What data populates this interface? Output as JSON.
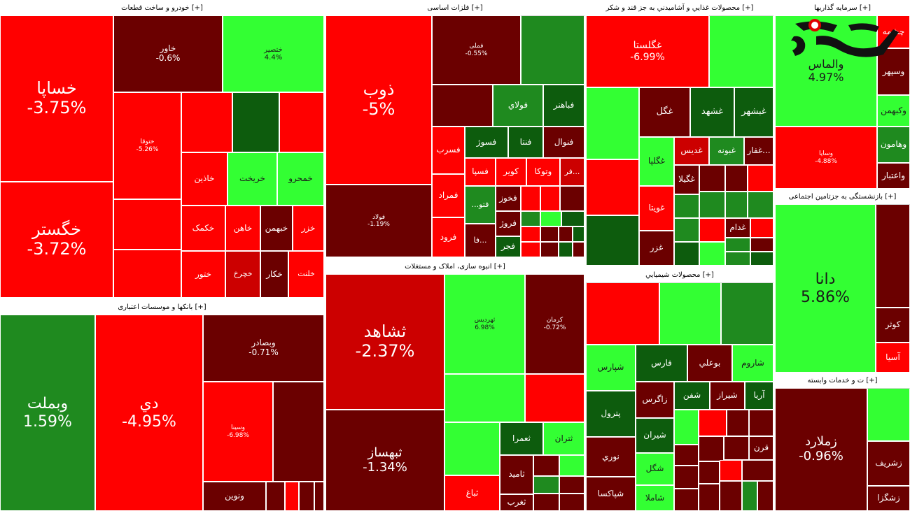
{
  "chart_data": {
    "type": "heatmap",
    "colors": {
      "dark_red": "#6b0000",
      "red": "#ff0000",
      "mid_red": "#cc0000",
      "maroon": "#8b0a0a",
      "bright_green": "#33ff33",
      "green": "#1f8a1f",
      "dark_green": "#0d5c0d"
    },
    "sectors": [
      {
        "name": "[+] خودرو و ساخت قطعات",
        "tiles": [
          {
            "symbol": "خساپا",
            "change": "-3.75%"
          },
          {
            "symbol": "خگستر",
            "change": "-3.72%"
          },
          {
            "symbol": "خاور",
            "change": "-0.6%"
          },
          {
            "symbol": "ختصیر",
            "change": "4.4%"
          },
          {
            "symbol": "ختوقا",
            "change": "-5.26%"
          },
          {
            "symbol": "خاذین",
            "change": ""
          },
          {
            "symbol": "خریخت",
            "change": ""
          },
          {
            "symbol": "خمحرو",
            "change": ""
          },
          {
            "symbol": "خکمک",
            "change": ""
          },
          {
            "symbol": "خاهن",
            "change": ""
          },
          {
            "symbol": "خبهمن",
            "change": ""
          },
          {
            "symbol": "خزر",
            "change": ""
          },
          {
            "symbol": "ختور",
            "change": ""
          },
          {
            "symbol": "خچرخ",
            "change": ""
          },
          {
            "symbol": "خکار",
            "change": ""
          },
          {
            "symbol": "خلنت",
            "change": ""
          }
        ]
      },
      {
        "name": "[+] فلزات اساسی",
        "tiles": [
          {
            "symbol": "ذوب",
            "change": "-5%"
          },
          {
            "symbol": "فولاد",
            "change": "-1.19%"
          },
          {
            "symbol": "فملی",
            "change": "-0.55%"
          },
          {
            "symbol": "فولاي",
            "change": ""
          },
          {
            "symbol": "فباهنر",
            "change": ""
          },
          {
            "symbol": "فسرب",
            "change": ""
          },
          {
            "symbol": "فسوژ",
            "change": ""
          },
          {
            "symbol": "فنتا",
            "change": ""
          },
          {
            "symbol": "فنوال",
            "change": ""
          },
          {
            "symbol": "فمراد",
            "change": ""
          },
          {
            "symbol": "فسپا",
            "change": ""
          },
          {
            "symbol": "کویر",
            "change": ""
          },
          {
            "symbol": "وتوکا",
            "change": ""
          },
          {
            "symbol": "...فر",
            "change": ""
          },
          {
            "symbol": "فخوز",
            "change": ""
          },
          {
            "symbol": "فتو...",
            "change": ""
          },
          {
            "symbol": "فروژ",
            "change": ""
          },
          {
            "symbol": "فرود",
            "change": ""
          },
          {
            "symbol": "...فا",
            "change": ""
          },
          {
            "symbol": "فجر",
            "change": ""
          }
        ]
      },
      {
        "name": "[+] محصولات غذايي و آشاميدني به جز قند و شكر",
        "tiles": [
          {
            "symbol": "غگلستا",
            "change": "-6.99%"
          },
          {
            "symbol": "غگل",
            "change": ""
          },
          {
            "symbol": "غشهد",
            "change": ""
          },
          {
            "symbol": "غبشهر",
            "change": ""
          },
          {
            "symbol": "غگلپا",
            "change": ""
          },
          {
            "symbol": "غدیس",
            "change": ""
          },
          {
            "symbol": "غبونه",
            "change": ""
          },
          {
            "symbol": "...غفار",
            "change": ""
          },
          {
            "symbol": "غگیلا",
            "change": ""
          },
          {
            "symbol": "غويتا",
            "change": ""
          },
          {
            "symbol": "غدام",
            "change": ""
          },
          {
            "symbol": "غزر",
            "change": ""
          }
        ]
      },
      {
        "name": "[+] سرمایه گذاریها",
        "tiles": [
          {
            "symbol": "والماس",
            "change": "4.97%"
          },
          {
            "symbol": "چشمه",
            "change": ""
          },
          {
            "symbol": "وسپهر",
            "change": ""
          },
          {
            "symbol": "وکبهمن",
            "change": ""
          },
          {
            "symbol": "وهامون",
            "change": ""
          },
          {
            "symbol": "واعتبار",
            "change": ""
          },
          {
            "symbol": "وسایا",
            "change": "-4.88%"
          }
        ]
      },
      {
        "name": "[+] بانکها و موسسات اعتباری",
        "tiles": [
          {
            "symbol": "وبملت",
            "change": "1.59%"
          },
          {
            "symbol": "دي",
            "change": "-4.95%"
          },
          {
            "symbol": "وبصادر",
            "change": "-0.71%"
          },
          {
            "symbol": "وسینا",
            "change": "-6.98%"
          },
          {
            "symbol": "ونوین",
            "change": ""
          }
        ]
      },
      {
        "name": "[+] انبوه سازی، املاک و مستغلات",
        "tiles": [
          {
            "symbol": "ثشاهد",
            "change": "-2.37%"
          },
          {
            "symbol": "ثبهساز",
            "change": "-1.34%"
          },
          {
            "symbol": "ثهرديس",
            "change": "6.98%"
          },
          {
            "symbol": "کرمان",
            "change": "-0.72%"
          },
          {
            "symbol": "ثعمرا",
            "change": ""
          },
          {
            "symbol": "ثتران",
            "change": ""
          },
          {
            "symbol": "ثاميد",
            "change": ""
          },
          {
            "symbol": "ثباغ",
            "change": ""
          },
          {
            "symbol": "ثغرب",
            "change": ""
          }
        ]
      },
      {
        "name": "[+] محصولات شيميايي",
        "tiles": [
          {
            "symbol": "شپارس",
            "change": ""
          },
          {
            "symbol": "فارس",
            "change": ""
          },
          {
            "symbol": "بوعلي",
            "change": ""
          },
          {
            "symbol": "شاروم",
            "change": ""
          },
          {
            "symbol": "شفن",
            "change": ""
          },
          {
            "symbol": "شيراز",
            "change": ""
          },
          {
            "symbol": "آريا",
            "change": ""
          },
          {
            "symbol": "زاگرس",
            "change": ""
          },
          {
            "symbol": "پترول",
            "change": ""
          },
          {
            "symbol": "شيران",
            "change": ""
          },
          {
            "symbol": "قرن",
            "change": ""
          },
          {
            "symbol": "نوري",
            "change": ""
          },
          {
            "symbol": "شگل",
            "change": ""
          },
          {
            "symbol": "شپاکسا",
            "change": ""
          },
          {
            "symbol": "شاملا",
            "change": ""
          }
        ]
      },
      {
        "name": "[+] بازنشستگی به جزتامین اجتماعی",
        "tiles": [
          {
            "symbol": "دانا",
            "change": "5.86%"
          },
          {
            "symbol": "كوثر",
            "change": ""
          },
          {
            "symbol": "آسیا",
            "change": ""
          }
        ]
      },
      {
        "name": "[+] ت و خدمات وابسته",
        "tiles": [
          {
            "symbol": "زملارد",
            "change": "-0.96%"
          },
          {
            "symbol": "زشریف",
            "change": ""
          },
          {
            "symbol": "زشگزا",
            "change": ""
          }
        ]
      }
    ]
  }
}
